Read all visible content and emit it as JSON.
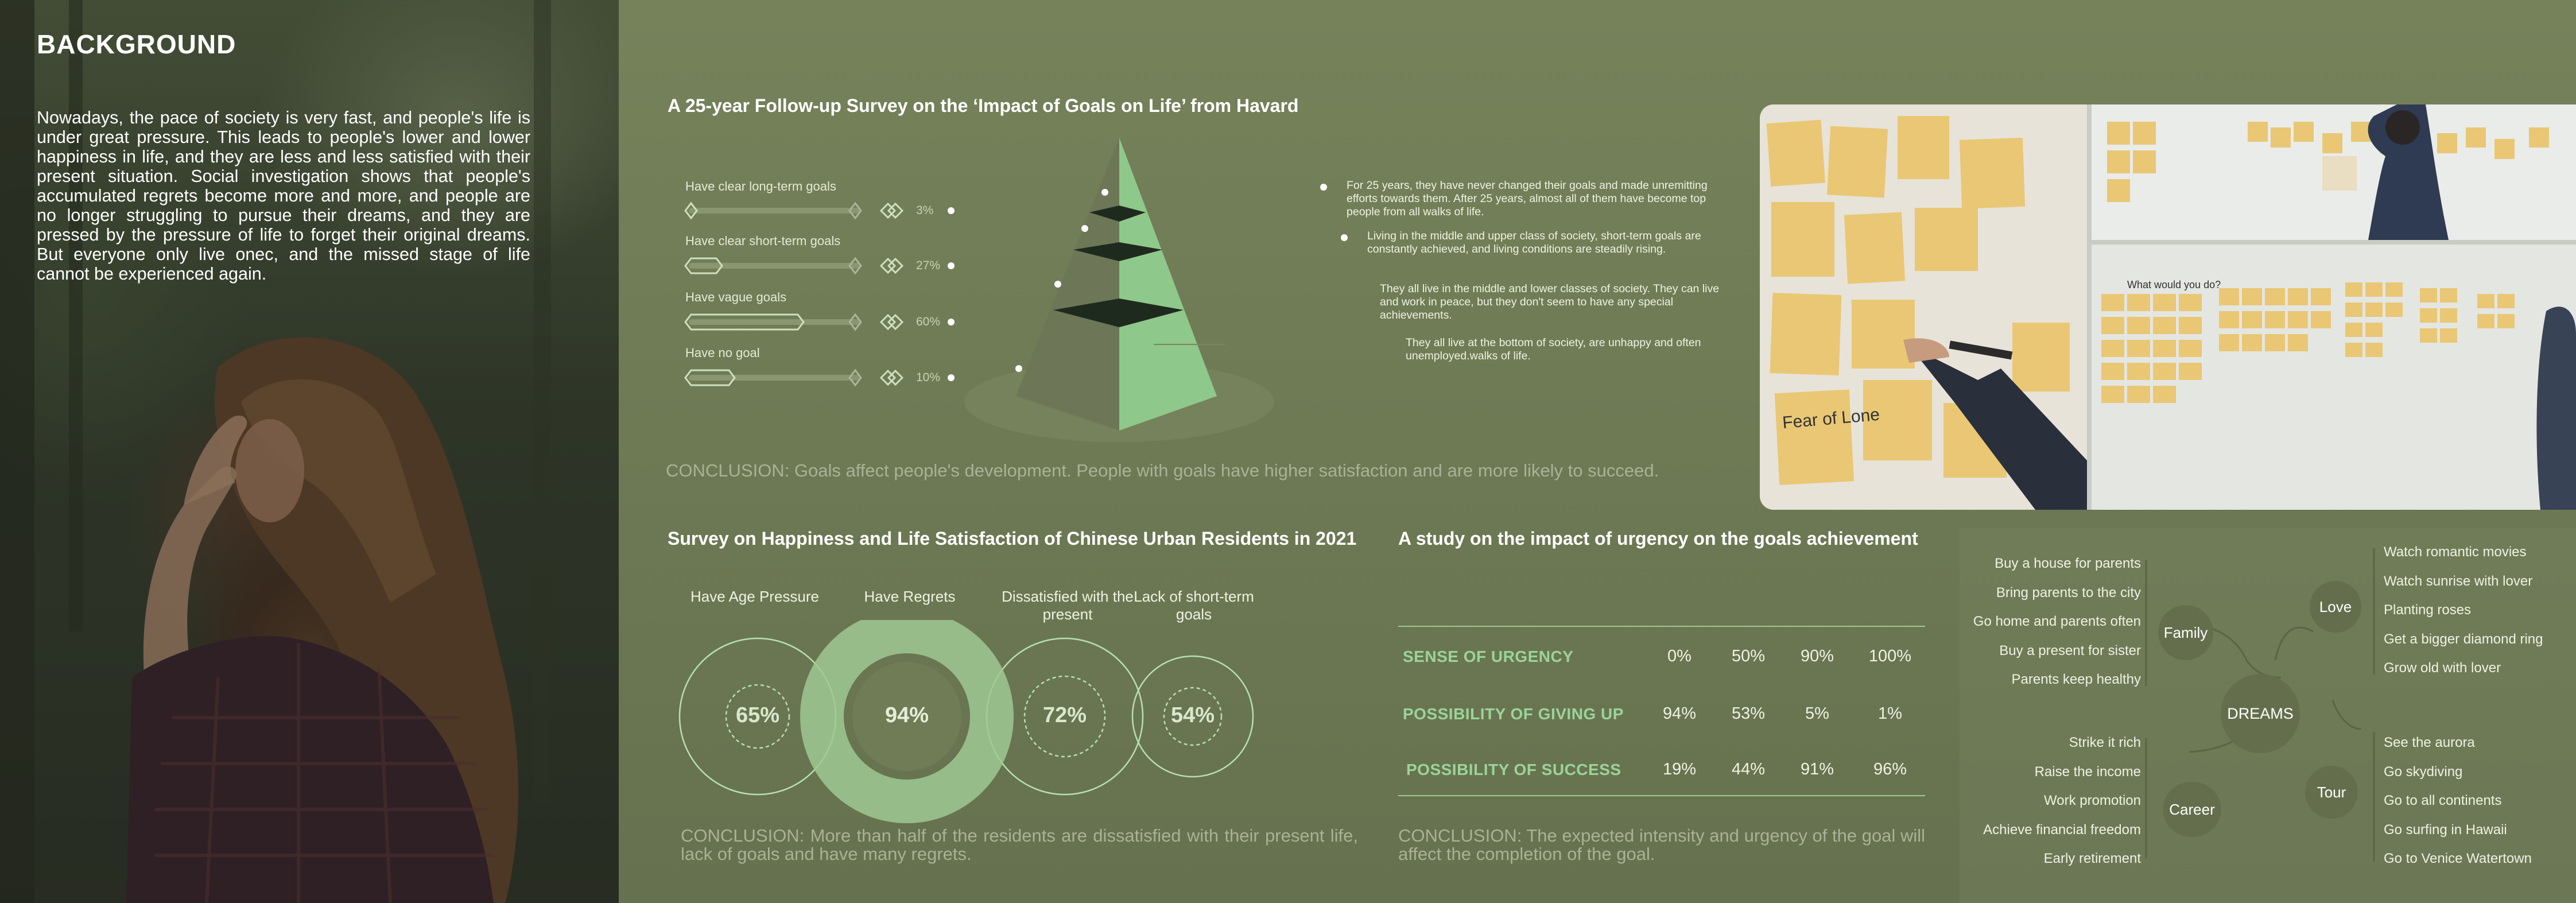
{
  "background": {
    "title": "BACKGROUND",
    "text": "Nowadays, the pace of society is very fast, and people's life is under great pressure. This leads to people's lower and lower happiness in life, and they are less and less satisfied with their present situation. Social investigation shows that people's accumulated regrets become more and more, and people are no longer struggling to pursue their dreams, and they are pressed by the pressure of life to forget their original dreams. But everyone only live onec, and the missed stage of life cannot be experienced again."
  },
  "survey1": {
    "title": "A 25-year Follow-up Survey on the ‘Impact of Goals on Life’ from Havard",
    "bars": [
      {
        "label": "Have clear long-term goals",
        "percent": "3%",
        "value": 3
      },
      {
        "label": "Have clear short-term goals",
        "percent": "27%",
        "value": 27
      },
      {
        "label": "Have vague goals",
        "percent": "60%",
        "value": 60
      },
      {
        "label": "Have no goal",
        "percent": "10%",
        "value": 10
      }
    ],
    "notes": [
      "For 25 years, they have never changed their goals and made unremitting efforts towards them. After 25 years, almost all of them have become top people from all walks of life.",
      "Living in the middle and upper class of society, short-term goals are constantly achieved, and living conditions are steadily rising.",
      "They all live in the middle and lower classes of society. They can live and work in peace, but they don't seem to have any special achievements.",
      "They all live at the bottom of society, are unhappy and often unemployed.walks of life."
    ],
    "conclusion": "CONCLUSION: Goals affect people's development. People with goals have higher satisfaction and are more likely to succeed."
  },
  "survey2": {
    "title": "Survey on Happiness and Life Satisfaction of Chinese Urban Residents in 2021",
    "items": [
      {
        "label": "Have Age Pressure",
        "percent": "65%",
        "value": 65
      },
      {
        "label": "Have Regrets",
        "percent": "94%",
        "value": 94
      },
      {
        "label": "Dissatisfied with the present",
        "percent": "72%",
        "value": 72
      },
      {
        "label": "Lack of short-term goals",
        "percent": "54%",
        "value": 54
      }
    ],
    "conclusion": "CONCLUSION: More than half of the residents are dissatisfied with their present life, lack of goals and have many regrets."
  },
  "study": {
    "title": "A study on the impact of urgency on the goals achievement",
    "rows": [
      {
        "label": "SENSE OF URGENCY",
        "values": [
          "0%",
          "50%",
          "90%",
          "100%"
        ]
      },
      {
        "label": "POSSIBILITY OF GIVING UP",
        "values": [
          "94%",
          "53%",
          "5%",
          "1%"
        ]
      },
      {
        "label": "POSSIBILITY OF SUCCESS",
        "values": [
          "19%",
          "44%",
          "91%",
          "96%"
        ]
      }
    ],
    "conclusion": "CONCLUSION: The expected intensity and urgency of the goal will affect the completion of the goal."
  },
  "dreams": {
    "center": "DREAMS",
    "family": {
      "label": "Family",
      "items": [
        "Buy a house for parents",
        "Bring parents to the city",
        "Go home and parents often",
        "Buy a present for sister",
        "Parents keep healthy"
      ]
    },
    "love": {
      "label": "Love",
      "items": [
        "Watch romantic movies",
        "Watch sunrise with lover",
        "Planting roses",
        "Get a bigger diamond ring",
        "Grow old with lover"
      ]
    },
    "career": {
      "label": "Career",
      "items": [
        "Strike it rich",
        "Raise the income",
        "Work promotion",
        "Achieve financial freedom",
        "Early retirement"
      ]
    },
    "tour": {
      "label": "Tour",
      "items": [
        "See the aurora",
        "Go skydiving",
        "Go to all continents",
        "Go surfing in Hawaii",
        "Go to Venice Watertown"
      ]
    }
  },
  "photos": {
    "note_1": "Fear of Lone",
    "note_2": "What would you do?"
  }
}
